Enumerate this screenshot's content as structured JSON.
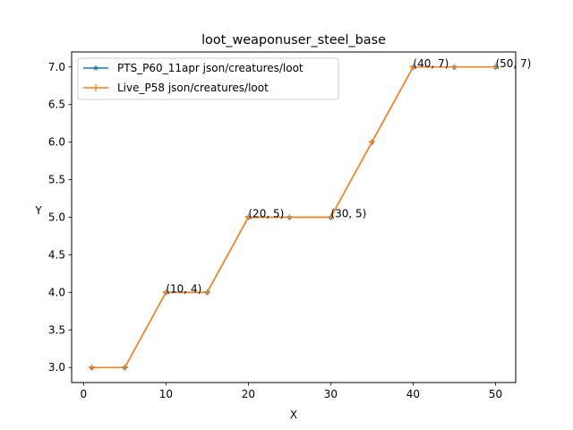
{
  "chart_data": {
    "type": "line",
    "title": "loot_weaponuser_steel_base",
    "xlabel": "X",
    "ylabel": "Y",
    "xlim": [
      -1.45,
      52.45
    ],
    "ylim": [
      2.8,
      7.2
    ],
    "xticks": [
      0,
      10,
      20,
      30,
      40,
      50
    ],
    "yticks": [
      3.0,
      3.5,
      4.0,
      4.5,
      5.0,
      5.5,
      6.0,
      6.5,
      7.0
    ],
    "xtick_labels": [
      "0",
      "10",
      "20",
      "30",
      "40",
      "50"
    ],
    "ytick_labels": [
      "3.0",
      "3.5",
      "4.0",
      "4.5",
      "5.0",
      "5.5",
      "6.0",
      "6.5",
      "7.0"
    ],
    "grid": false,
    "legend_position": "top-left",
    "x": [
      1,
      5,
      10,
      15,
      20,
      25,
      30,
      35,
      40,
      45,
      50
    ],
    "series": [
      {
        "name": "PTS_P60_11apr json/creatures/loot",
        "values": [
          3,
          3,
          4,
          4,
          5,
          5,
          5,
          6,
          7,
          7,
          7
        ],
        "color": "#1f77b4",
        "marker": "star"
      },
      {
        "name": "Live_P58 json/creatures/loot",
        "values": [
          3,
          3,
          4,
          4,
          5,
          5,
          5,
          6,
          7,
          7,
          7
        ],
        "color": "#ff7f0e",
        "marker": "plus"
      }
    ],
    "annotations": [
      {
        "text": "(10, 4)",
        "x": 10,
        "y": 4
      },
      {
        "text": "(20, 5)",
        "x": 20,
        "y": 5
      },
      {
        "text": "(30, 5)",
        "x": 30,
        "y": 5
      },
      {
        "text": "(40, 7)",
        "x": 40,
        "y": 7
      },
      {
        "text": "(50, 7)",
        "x": 50,
        "y": 7
      }
    ]
  }
}
